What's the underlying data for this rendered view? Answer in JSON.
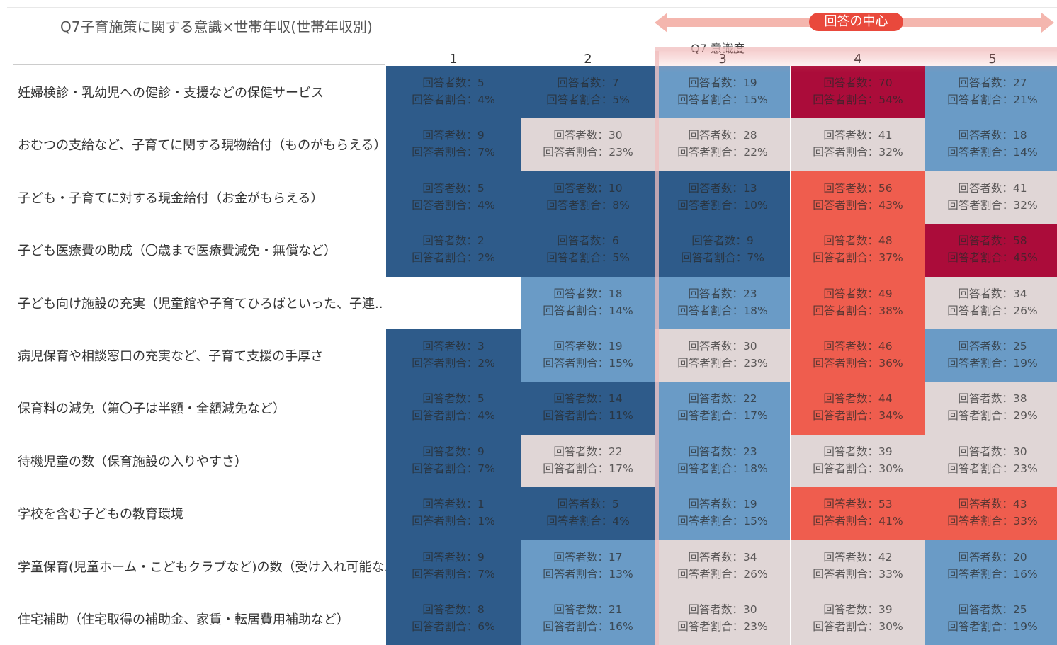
{
  "header": {
    "title": "Q7子育施策に関する意識×世帯年収(世帯年収別)",
    "center_label": "回答の中心",
    "axis_name": "Q7 意識度"
  },
  "columns": [
    "1",
    "2",
    "3",
    "4",
    "5"
  ],
  "rows": [
    {
      "label": "妊婦検診・乳幼児への健診・支援などの保健サービス",
      "cells": [
        {
          "count": "回答者数：5",
          "share": "回答者割合：4%",
          "color": "#2e5b8a"
        },
        {
          "count": "回答者数：7",
          "share": "回答者割合：5%",
          "color": "#2e5b8a"
        },
        {
          "count": "回答者数：19",
          "share": "回答者割合：15%",
          "color": "#6a9bc6"
        },
        {
          "count": "回答者数：70",
          "share": "回答者割合：54%",
          "color": "#ab0c3a"
        },
        {
          "count": "回答者数：27",
          "share": "回答者割合：21%",
          "color": "#6a9bc6"
        }
      ]
    },
    {
      "label": "おむつの支給など、子育てに関する現物給付（ものがもらえる）",
      "cells": [
        {
          "count": "回答者数：9",
          "share": "回答者割合：7%",
          "color": "#2e5b8a"
        },
        {
          "count": "回答者数：30",
          "share": "回答者割合：23%",
          "color": "#e0d6d6"
        },
        {
          "count": "回答者数：28",
          "share": "回答者割合：22%",
          "color": "#e0d6d6"
        },
        {
          "count": "回答者数：41",
          "share": "回答者割合：32%",
          "color": "#e0d6d6"
        },
        {
          "count": "回答者数：18",
          "share": "回答者割合：14%",
          "color": "#6a9bc6"
        }
      ]
    },
    {
      "label": "子ども・子育てに対する現金給付（お金がもらえる）",
      "cells": [
        {
          "count": "回答者数：5",
          "share": "回答者割合：4%",
          "color": "#2e5b8a"
        },
        {
          "count": "回答者数：10",
          "share": "回答者割合：8%",
          "color": "#2e5b8a"
        },
        {
          "count": "回答者数：13",
          "share": "回答者割合：10%",
          "color": "#2e5b8a"
        },
        {
          "count": "回答者数：56",
          "share": "回答者割合：43%",
          "color": "#ef5d4e"
        },
        {
          "count": "回答者数：41",
          "share": "回答者割合：32%",
          "color": "#e0d6d6"
        }
      ]
    },
    {
      "label": "子ども医療費の助成（〇歳まで医療費減免・無償など）",
      "cells": [
        {
          "count": "回答者数：2",
          "share": "回答者割合：2%",
          "color": "#2e5b8a"
        },
        {
          "count": "回答者数：6",
          "share": "回答者割合：5%",
          "color": "#2e5b8a"
        },
        {
          "count": "回答者数：9",
          "share": "回答者割合：7%",
          "color": "#2e5b8a"
        },
        {
          "count": "回答者数：48",
          "share": "回答者割合：37%",
          "color": "#ef5d4e"
        },
        {
          "count": "回答者数：58",
          "share": "回答者割合：45%",
          "color": "#ab0c3a"
        }
      ]
    },
    {
      "label": "子ども向け施設の充実（児童館や子育てひろばといった、子連..",
      "cells": [
        null,
        {
          "count": "回答者数：18",
          "share": "回答者割合：14%",
          "color": "#6a9bc6"
        },
        {
          "count": "回答者数：23",
          "share": "回答者割合：18%",
          "color": "#6a9bc6"
        },
        {
          "count": "回答者数：49",
          "share": "回答者割合：38%",
          "color": "#ef5d4e"
        },
        {
          "count": "回答者数：34",
          "share": "回答者割合：26%",
          "color": "#e0d6d6"
        }
      ]
    },
    {
      "label": "病児保育や相談窓口の充実など、子育て支援の手厚さ",
      "cells": [
        {
          "count": "回答者数：3",
          "share": "回答者割合：2%",
          "color": "#2e5b8a"
        },
        {
          "count": "回答者数：19",
          "share": "回答者割合：15%",
          "color": "#6a9bc6"
        },
        {
          "count": "回答者数：30",
          "share": "回答者割合：23%",
          "color": "#e0d6d6"
        },
        {
          "count": "回答者数：46",
          "share": "回答者割合：36%",
          "color": "#ef5d4e"
        },
        {
          "count": "回答者数：25",
          "share": "回答者割合：19%",
          "color": "#6a9bc6"
        }
      ]
    },
    {
      "label": "保育料の減免（第〇子は半額・全額減免など）",
      "cells": [
        {
          "count": "回答者数：5",
          "share": "回答者割合：4%",
          "color": "#2e5b8a"
        },
        {
          "count": "回答者数：14",
          "share": "回答者割合：11%",
          "color": "#2e5b8a"
        },
        {
          "count": "回答者数：22",
          "share": "回答者割合：17%",
          "color": "#6a9bc6"
        },
        {
          "count": "回答者数：44",
          "share": "回答者割合：34%",
          "color": "#ef5d4e"
        },
        {
          "count": "回答者数：38",
          "share": "回答者割合：29%",
          "color": "#e0d6d6"
        }
      ]
    },
    {
      "label": "待機児童の数（保育施設の入りやすさ）",
      "cells": [
        {
          "count": "回答者数：9",
          "share": "回答者割合：7%",
          "color": "#2e5b8a"
        },
        {
          "count": "回答者数：22",
          "share": "回答者割合：17%",
          "color": "#e0d6d6"
        },
        {
          "count": "回答者数：23",
          "share": "回答者割合：18%",
          "color": "#6a9bc6"
        },
        {
          "count": "回答者数：39",
          "share": "回答者割合：30%",
          "color": "#e0d6d6"
        },
        {
          "count": "回答者数：30",
          "share": "回答者割合：23%",
          "color": "#e0d6d6"
        }
      ]
    },
    {
      "label": "学校を含む子どもの教育環境",
      "cells": [
        {
          "count": "回答者数：1",
          "share": "回答者割合：1%",
          "color": "#2e5b8a"
        },
        {
          "count": "回答者数：5",
          "share": "回答者割合：4%",
          "color": "#2e5b8a"
        },
        {
          "count": "回答者数：19",
          "share": "回答者割合：15%",
          "color": "#6a9bc6"
        },
        {
          "count": "回答者数：53",
          "share": "回答者割合：41%",
          "color": "#ef5d4e"
        },
        {
          "count": "回答者数：43",
          "share": "回答者割合：33%",
          "color": "#ef5d4e"
        }
      ]
    },
    {
      "label": "学童保育(児童ホーム・こどもクラブなど)の数（受け入れ可能な..",
      "cells": [
        {
          "count": "回答者数：9",
          "share": "回答者割合：7%",
          "color": "#2e5b8a"
        },
        {
          "count": "回答者数：17",
          "share": "回答者割合：13%",
          "color": "#6a9bc6"
        },
        {
          "count": "回答者数：34",
          "share": "回答者割合：26%",
          "color": "#e0d6d6"
        },
        {
          "count": "回答者数：42",
          "share": "回答者割合：33%",
          "color": "#e0d6d6"
        },
        {
          "count": "回答者数：20",
          "share": "回答者割合：16%",
          "color": "#6a9bc6"
        }
      ]
    },
    {
      "label": "住宅補助（住宅取得の補助金、家賃・転居費用補助など）",
      "cells": [
        {
          "count": "回答者数：8",
          "share": "回答者割合：6%",
          "color": "#2e5b8a"
        },
        {
          "count": "回答者数：21",
          "share": "回答者割合：16%",
          "color": "#6a9bc6"
        },
        {
          "count": "回答者数：30",
          "share": "回答者割合：23%",
          "color": "#e0d6d6"
        },
        {
          "count": "回答者数：39",
          "share": "回答者割合：30%",
          "color": "#e0d6d6"
        },
        {
          "count": "回答者数：25",
          "share": "回答者割合：19%",
          "color": "#6a9bc6"
        }
      ]
    }
  ]
}
